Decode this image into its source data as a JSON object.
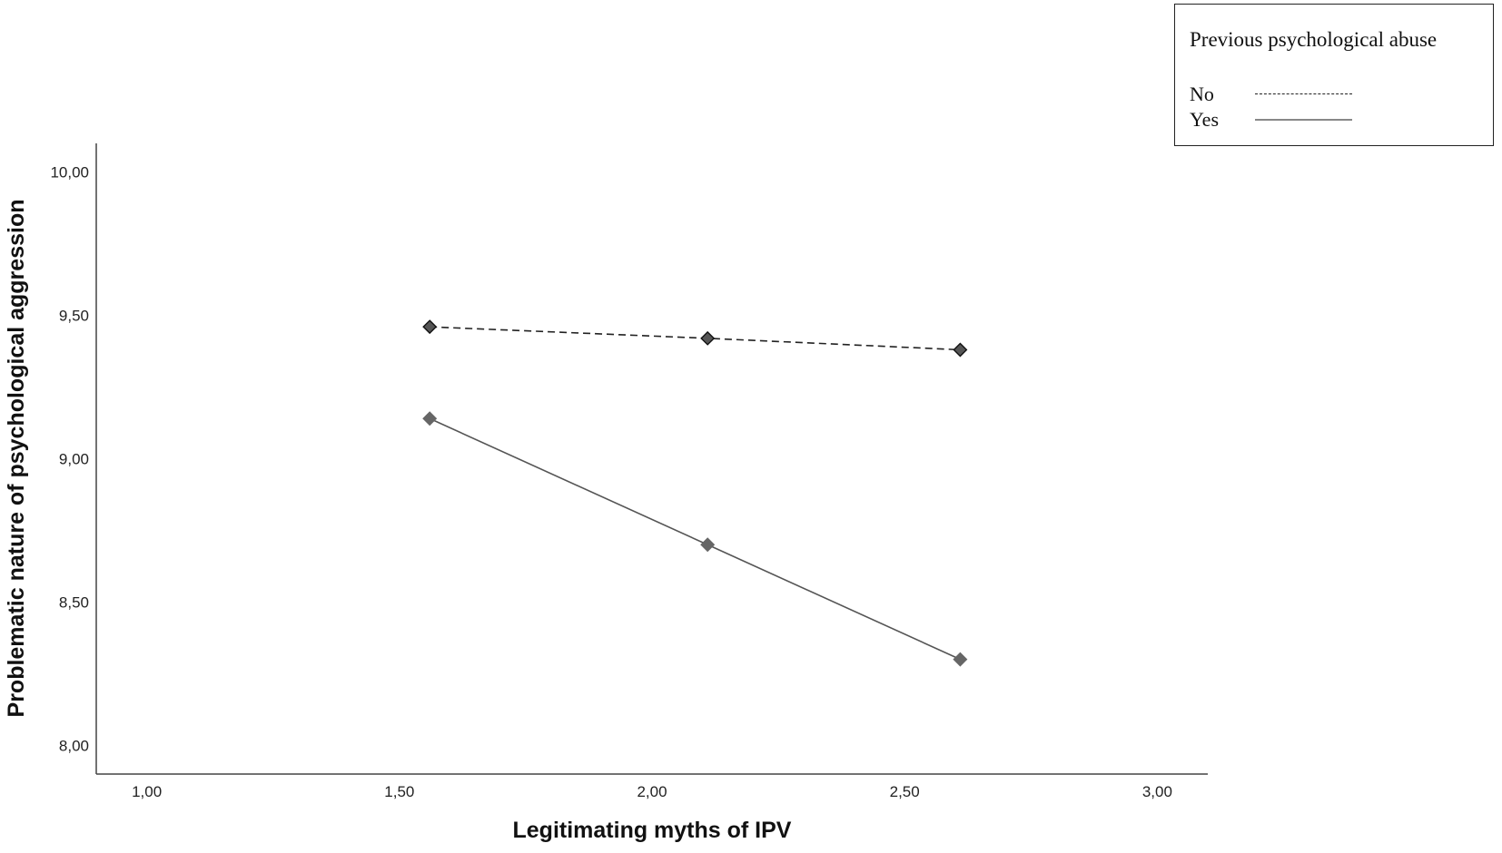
{
  "chart_data": {
    "type": "line",
    "title": "",
    "xlabel": "Legitimating myths of IPV",
    "ylabel": "Problematic nature of psychological aggression",
    "xlim": [
      0.9,
      3.1
    ],
    "ylim": [
      7.9,
      10.1
    ],
    "x_ticks": [
      {
        "value": 1.0,
        "label": "1,00"
      },
      {
        "value": 1.5,
        "label": "1,50"
      },
      {
        "value": 2.0,
        "label": "2,00"
      },
      {
        "value": 2.5,
        "label": "2,50"
      },
      {
        "value": 3.0,
        "label": "3,00"
      }
    ],
    "y_ticks": [
      {
        "value": 8.0,
        "label": "8,00"
      },
      {
        "value": 8.5,
        "label": "8,50"
      },
      {
        "value": 9.0,
        "label": "9,00"
      },
      {
        "value": 9.5,
        "label": "9,50"
      },
      {
        "value": 10.0,
        "label": "10,00"
      }
    ],
    "x": [
      1.56,
      2.11,
      2.61
    ],
    "series": [
      {
        "name": "No",
        "values": [
          9.46,
          9.42,
          9.38
        ],
        "style": "dashed",
        "color": "#222222",
        "marker": "diamond",
        "marker_color": "#555555"
      },
      {
        "name": "Yes",
        "values": [
          9.14,
          8.7,
          8.3
        ],
        "style": "solid",
        "color": "#555555",
        "marker": "diamond",
        "marker_color": "#666666"
      }
    ],
    "grid": false,
    "legend": {
      "title": "Previous psychological abuse",
      "placement": "top-right"
    }
  }
}
